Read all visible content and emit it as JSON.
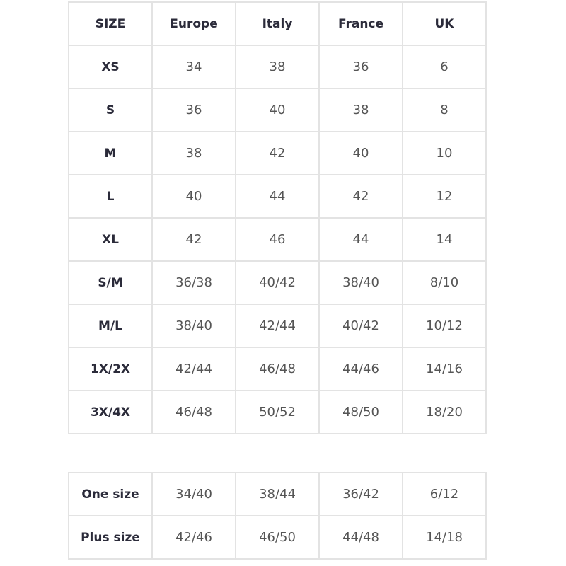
{
  "table": {
    "headers": [
      "SIZE",
      "Europe",
      "Italy",
      "France",
      "UK"
    ],
    "rows": [
      [
        "XS",
        "34",
        "38",
        "36",
        "6"
      ],
      [
        "S",
        "36",
        "40",
        "38",
        "8"
      ],
      [
        "M",
        "38",
        "42",
        "40",
        "10"
      ],
      [
        "L",
        "40",
        "44",
        "42",
        "12"
      ],
      [
        "XL",
        "42",
        "46",
        "44",
        "14"
      ],
      [
        "S/M",
        "36/38",
        "40/42",
        "38/40",
        "8/10"
      ],
      [
        "M/L",
        "38/40",
        "42/44",
        "40/42",
        "10/12"
      ],
      [
        "1X/2X",
        "42/44",
        "46/48",
        "44/46",
        "14/16"
      ],
      [
        "3X/4X",
        "46/48",
        "50/52",
        "48/50",
        "18/20"
      ]
    ]
  },
  "extra_table": {
    "rows": [
      [
        "One size",
        "34/40",
        "38/44",
        "36/42",
        "6/12"
      ],
      [
        "Plus size",
        "42/46",
        "46/50",
        "44/48",
        "14/18"
      ]
    ]
  }
}
